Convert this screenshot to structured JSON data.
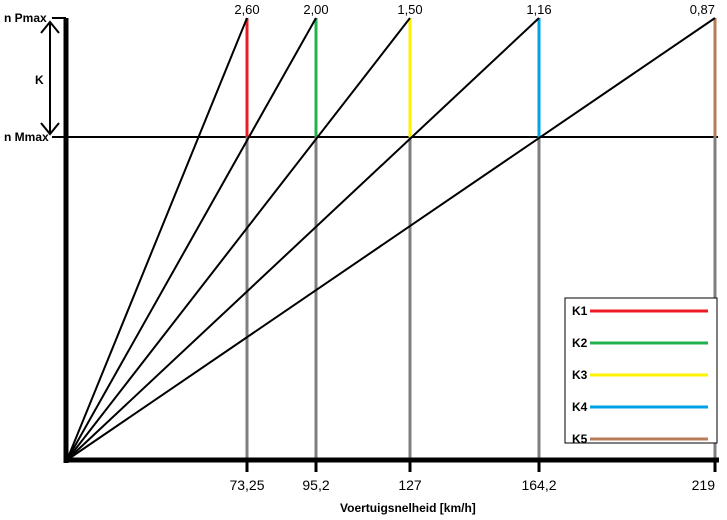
{
  "y_labels": {
    "top": "n Pmax",
    "middle": "n Mmax",
    "range": "K"
  },
  "x_axis_label": "Voertuigsnelheid [km/h]",
  "gears": [
    {
      "name": "K1",
      "ratio": "2,60",
      "speed": "73,25",
      "color": "#ed1c24"
    },
    {
      "name": "K2",
      "ratio": "2,00",
      "speed": "95,2",
      "color": "#22b14c"
    },
    {
      "name": "K3",
      "ratio": "1,50",
      "speed": "127",
      "color": "#fff200"
    },
    {
      "name": "K4",
      "ratio": "1,16",
      "speed": "164,2",
      "color": "#00a2e8"
    },
    {
      "name": "K5",
      "ratio": "0,87",
      "speed": "219",
      "color": "#b97a57"
    }
  ]
}
